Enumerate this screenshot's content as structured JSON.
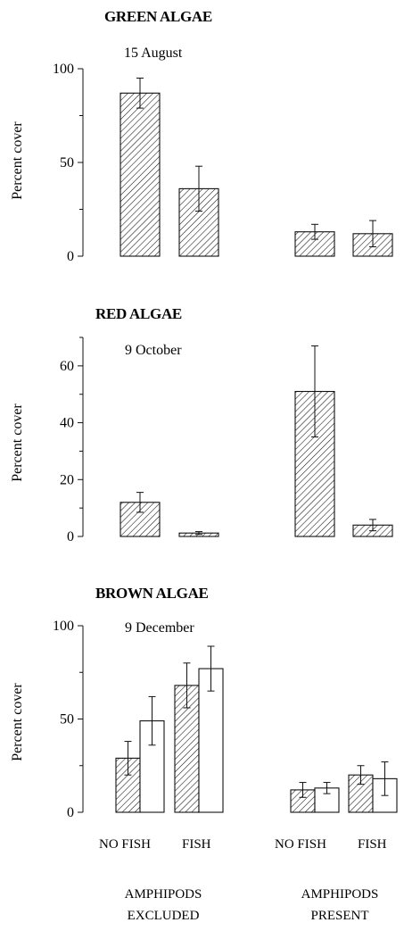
{
  "chart_data": [
    {
      "type": "bar",
      "title": "GREEN ALGAE",
      "subtitle": "15 August",
      "ylabel": "Percent cover",
      "ylim": [
        0,
        100
      ],
      "yticks": [
        0,
        50,
        100
      ],
      "categories": [
        "NO FISH",
        "FISH",
        "NO FISH",
        "FISH"
      ],
      "series": [
        {
          "fill": "hatched",
          "values": [
            87,
            36,
            13,
            12
          ],
          "errors": [
            8,
            12,
            4,
            7
          ]
        }
      ]
    },
    {
      "type": "bar",
      "title": "RED ALGAE",
      "subtitle": "9 October",
      "ylabel": "Percent cover",
      "ylim": [
        0,
        70
      ],
      "yticks": [
        0,
        20,
        40,
        60
      ],
      "categories": [
        "NO FISH",
        "FISH",
        "NO FISH",
        "FISH"
      ],
      "series": [
        {
          "fill": "hatched",
          "values": [
            12,
            1.2,
            51,
            4
          ],
          "errors": [
            3.5,
            0.5,
            16,
            2
          ]
        }
      ]
    },
    {
      "type": "bar",
      "title": "BROWN ALGAE",
      "subtitle": "9 December",
      "ylabel": "Percent cover",
      "ylim": [
        0,
        100
      ],
      "yticks": [
        0,
        50,
        100
      ],
      "categories": [
        "NO FISH",
        "FISH",
        "NO FISH",
        "FISH"
      ],
      "series": [
        {
          "fill": "hatched",
          "values": [
            29,
            68,
            12,
            20
          ],
          "errors": [
            9,
            12,
            4,
            5
          ]
        },
        {
          "fill": "white",
          "values": [
            49,
            77,
            13,
            18
          ],
          "errors": [
            13,
            12,
            3,
            9
          ]
        }
      ]
    }
  ],
  "x_axis": {
    "category_labels": [
      "NO FISH",
      "FISH",
      "NO FISH",
      "FISH"
    ],
    "groups": [
      {
        "line1": "AMPHIPODS",
        "line2": "EXCLUDED"
      },
      {
        "line1": "AMPHIPODS",
        "line2": "PRESENT"
      }
    ]
  },
  "colors": {
    "ink": "#111111",
    "hatch": "#111111",
    "open_fill": "#ffffff"
  }
}
